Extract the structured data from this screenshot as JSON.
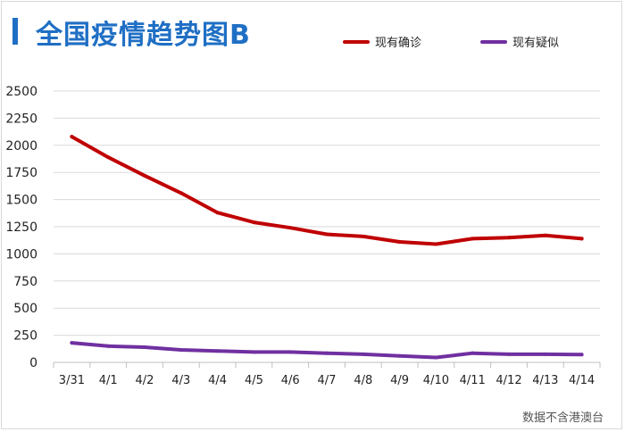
{
  "title": "全国疫情趋势图B",
  "footnote": "数据不含港澳台",
  "chart_data": {
    "type": "line",
    "categories": [
      "3/31",
      "4/1",
      "4/2",
      "4/3",
      "4/4",
      "4/5",
      "4/6",
      "4/7",
      "4/8",
      "4/9",
      "4/10",
      "4/11",
      "4/12",
      "4/13",
      "4/14"
    ],
    "yticks": [
      "0",
      "250",
      "500",
      "750",
      "1000",
      "1250",
      "1500",
      "1750",
      "2000",
      "2250",
      "2500"
    ],
    "ylim": [
      0,
      2500
    ],
    "grid": "horizontal",
    "legend_position": "top-right",
    "series": [
      {
        "name": "现有确诊",
        "color": "#c00000",
        "values": [
          2080,
          1890,
          1720,
          1560,
          1380,
          1290,
          1240,
          1180,
          1160,
          1110,
          1090,
          1140,
          1150,
          1170,
          1140
        ]
      },
      {
        "name": "现有疑似",
        "color": "#7030a0",
        "values": [
          180,
          150,
          140,
          115,
          105,
          95,
          95,
          85,
          75,
          60,
          45,
          85,
          75,
          75,
          72
        ]
      }
    ]
  }
}
